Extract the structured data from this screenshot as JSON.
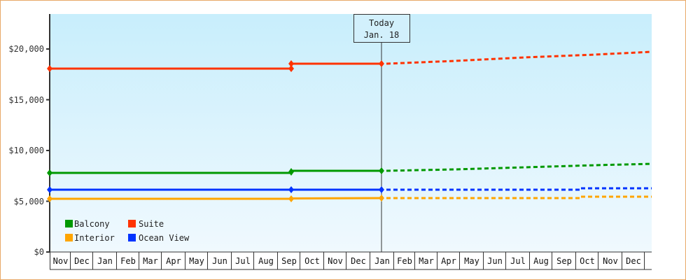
{
  "chart_data": {
    "type": "line",
    "title": "",
    "xlabel": "",
    "ylabel": "",
    "ylim": [
      0,
      23500
    ],
    "grid": false,
    "legend_position": "lower-left inside plot",
    "y_ticks": [
      "$0",
      "$5,000",
      "$10,000",
      "$15,000",
      "$20,000"
    ],
    "x_tick_labels": [
      "Nov",
      "Dec",
      "Jan",
      "Feb",
      "Mar",
      "Apr",
      "May",
      "Jun",
      "Jul",
      "Aug",
      "Sep",
      "Oct",
      "Nov",
      "Dec",
      "Jan",
      "Feb",
      "Mar",
      "Apr",
      "May",
      "Jun",
      "Jul",
      "Aug",
      "Sep",
      "Oct",
      "Nov",
      "Dec"
    ],
    "annotation": {
      "line1": "Today",
      "line2": "Jan. 18"
    },
    "series": [
      {
        "name": "Suite",
        "color": "#ff3300",
        "history": [
          {
            "x": "Nov",
            "y": 18100
          },
          {
            "x": "Sep",
            "y": 18100
          },
          {
            "x": "Sep",
            "y": 18600
          },
          {
            "x": "Jan (today)",
            "y": 18600
          }
        ],
        "forecast": [
          {
            "x": "Jan (today)",
            "y": 18600
          },
          {
            "x": "Dec",
            "y": 19750
          }
        ]
      },
      {
        "name": "Balcony",
        "color": "#009900",
        "history": [
          {
            "x": "Nov",
            "y": 7800
          },
          {
            "x": "Sep",
            "y": 7800
          },
          {
            "x": "Sep",
            "y": 8000
          },
          {
            "x": "Jan (today)",
            "y": 8000
          }
        ],
        "forecast": [
          {
            "x": "Jan (today)",
            "y": 8000
          },
          {
            "x": "Dec",
            "y": 8700
          }
        ]
      },
      {
        "name": "Ocean View",
        "color": "#0033ff",
        "history": [
          {
            "x": "Nov",
            "y": 6200
          },
          {
            "x": "Sep",
            "y": 6200
          },
          {
            "x": "Jan (today)",
            "y": 6200
          }
        ],
        "forecast": [
          {
            "x": "Jan (today)",
            "y": 6200
          },
          {
            "x": "Dec",
            "y": 6300
          }
        ]
      },
      {
        "name": "Interior",
        "color": "#ffa500",
        "history": [
          {
            "x": "Nov",
            "y": 5200
          },
          {
            "x": "Sep",
            "y": 5250
          },
          {
            "x": "Jan (today)",
            "y": 5300
          }
        ],
        "forecast": [
          {
            "x": "Jan (today)",
            "y": 5300
          },
          {
            "x": "Dec",
            "y": 5500
          }
        ]
      }
    ]
  },
  "legend": {
    "items": [
      {
        "label": "Balcony",
        "color": "#009900"
      },
      {
        "label": "Suite",
        "color": "#ff3300"
      },
      {
        "label": "Interior",
        "color": "#ffa500"
      },
      {
        "label": "Ocean View",
        "color": "#0033ff"
      }
    ]
  },
  "today": {
    "line1": "Today",
    "line2": "Jan. 18"
  },
  "yaxis": {
    "t0": "$0",
    "t5": "$5,000",
    "t10": "$10,000",
    "t15": "$15,000",
    "t20": "$20,000"
  },
  "months": [
    "Nov",
    "Dec",
    "Jan",
    "Feb",
    "Mar",
    "Apr",
    "May",
    "Jun",
    "Jul",
    "Aug",
    "Sep",
    "Oct",
    "Nov",
    "Dec",
    "Jan",
    "Feb",
    "Mar",
    "Apr",
    "May",
    "Jun",
    "Jul",
    "Aug",
    "Sep",
    "Oct",
    "Nov",
    "Dec"
  ]
}
